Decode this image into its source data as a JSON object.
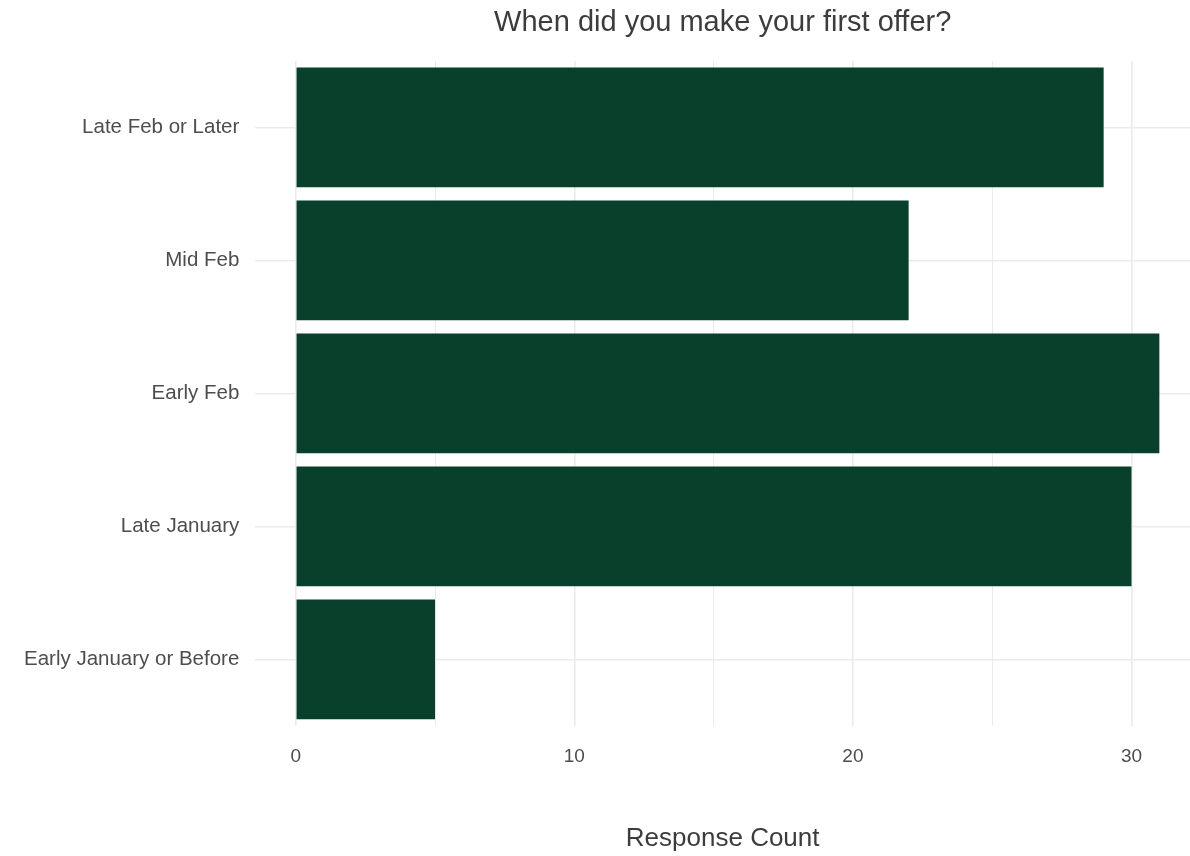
{
  "chart_data": {
    "type": "bar",
    "orientation": "horizontal",
    "title": "When did you make your first offer?",
    "xlabel": "Response Count",
    "categories": [
      "Late Feb or Later",
      "Mid Feb",
      "Early Feb",
      "Late January",
      "Early January or Before"
    ],
    "values": [
      29,
      22,
      31,
      30,
      5
    ],
    "color": "#08402c",
    "xlim": [
      -1.45,
      32.1
    ],
    "xticks": [
      0,
      {
        "value": 5,
        "label": null
      },
      10,
      {
        "value": 15,
        "label": null
      },
      20,
      {
        "value": 25,
        "label": null
      },
      30
    ],
    "grid": true
  }
}
